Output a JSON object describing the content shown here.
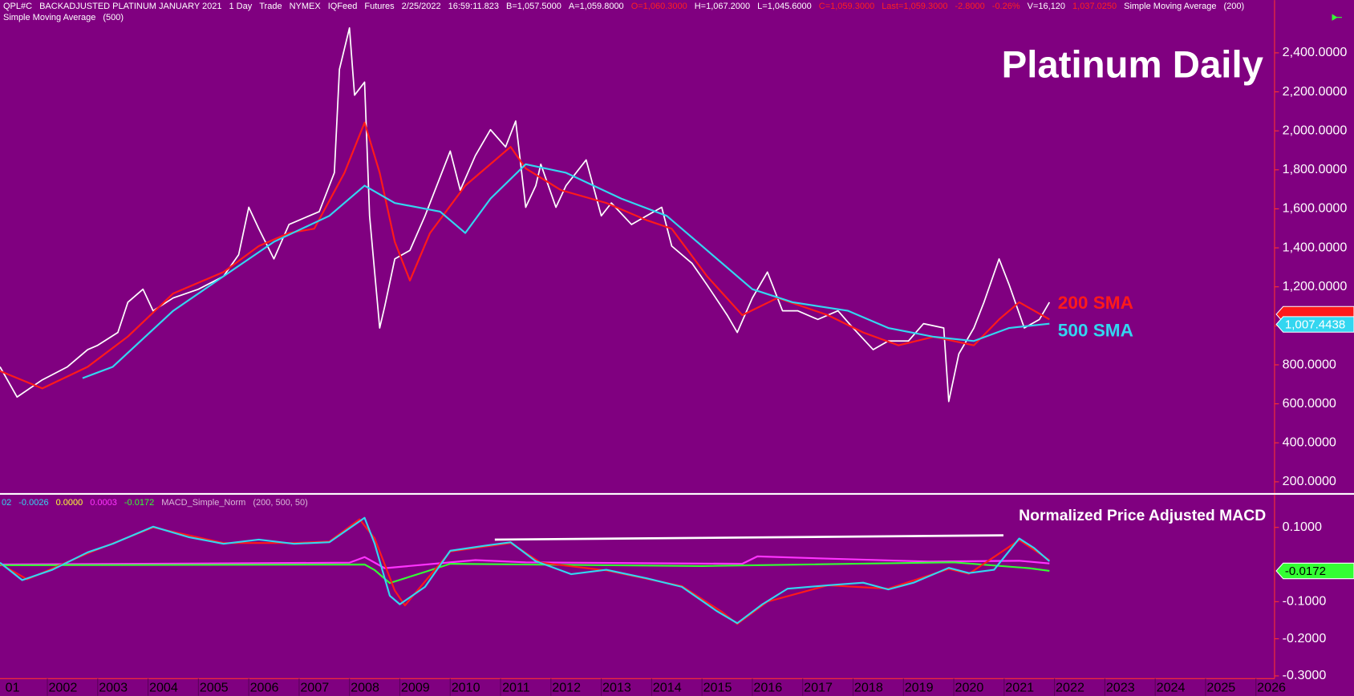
{
  "toolbar": {
    "row1": [
      {
        "text": "QPL#C",
        "color": "#ffffff"
      },
      {
        "text": "BACKADJUSTED PLATINUM JANUARY 2021",
        "color": "#ffffff"
      },
      {
        "text": "1 Day",
        "color": "#ffffff"
      },
      {
        "text": "Trade",
        "color": "#ffffff"
      },
      {
        "text": "NYMEX",
        "color": "#ffffff"
      },
      {
        "text": "IQFeed",
        "color": "#ffffff"
      },
      {
        "text": "Futures",
        "color": "#ffffff"
      },
      {
        "text": "2/25/2022",
        "color": "#ffffff"
      },
      {
        "text": "16:59:11.823",
        "color": "#ffffff"
      },
      {
        "text": "B=1,057.5000",
        "color": "#ffffff"
      },
      {
        "text": "A=1,059.8000",
        "color": "#ffffff"
      },
      {
        "text": "O=1,060.3000",
        "color": "#ff2020"
      },
      {
        "text": "H=1,067.2000",
        "color": "#ffffff"
      },
      {
        "text": "L=1,045.6000",
        "color": "#ffffff"
      },
      {
        "text": "C=1,059.3000",
        "color": "#ff2020"
      },
      {
        "text": "Last=1,059.3000",
        "color": "#ff2020"
      },
      {
        "text": "-2.8000",
        "color": "#ff2020"
      },
      {
        "text": "-0.26%",
        "color": "#ff2020"
      },
      {
        "text": "V=16,120",
        "color": "#ffffff"
      },
      {
        "text": "1,037.0250",
        "color": "#ff2020"
      },
      {
        "text": "Simple Moving Average",
        "color": "#ffffff"
      },
      {
        "text": "(200)",
        "color": "#ffffff"
      }
    ],
    "row2": [
      {
        "text": "Simple Moving Average",
        "color": "#ffffff"
      },
      {
        "text": "(500)",
        "color": "#ffffff"
      }
    ]
  },
  "chart_data": [
    {
      "type": "line",
      "title": "Platinum Daily",
      "xlim": [
        2001.06,
        2026.37
      ],
      "ylim": [
        147,
        2604
      ],
      "yticks": [
        {
          "value": 2400,
          "label": "2,400.0000"
        },
        {
          "value": 2200,
          "label": "2,200.0000"
        },
        {
          "value": 2000,
          "label": "2,000.0000"
        },
        {
          "value": 1800,
          "label": "1,800.0000"
        },
        {
          "value": 1600,
          "label": "1,600.0000"
        },
        {
          "value": 1400,
          "label": "1,400.0000"
        },
        {
          "value": 1200,
          "label": "1,200.0000"
        },
        {
          "value": 1000,
          "label": "1,000.0000"
        },
        {
          "value": 800,
          "label": "800.0000"
        },
        {
          "value": 600,
          "label": "600.0000"
        },
        {
          "value": 400,
          "label": "400.0000"
        },
        {
          "value": 200,
          "label": "200.0000"
        }
      ],
      "series": [
        {
          "color": "#ffffff",
          "x": [
            2001.06,
            2001.4,
            2001.9,
            2002.4,
            2002.8,
            2003.0,
            2003.4,
            2003.6,
            2003.9,
            2004.1,
            2004.5,
            2005.0,
            2005.5,
            2005.8,
            2006.0,
            2006.2,
            2006.5,
            2006.8,
            2007.2,
            2007.4,
            2007.7,
            2007.8,
            2008.0,
            2008.1,
            2008.3,
            2008.4,
            2008.6,
            2008.7,
            2008.9,
            2009.2,
            2009.5,
            2009.8,
            2010.0,
            2010.2,
            2010.5,
            2010.8,
            2011.1,
            2011.3,
            2011.5,
            2011.7,
            2011.8,
            2012.1,
            2012.3,
            2012.7,
            2013.0,
            2013.2,
            2013.6,
            2013.9,
            2014.2,
            2014.4,
            2014.8,
            2015.1,
            2015.5,
            2015.7,
            2016.0,
            2016.3,
            2016.6,
            2016.9,
            2017.3,
            2017.7,
            2018.0,
            2018.4,
            2018.7,
            2019.1,
            2019.4,
            2019.8,
            2019.9,
            2020.1,
            2020.4,
            2020.6,
            2020.9,
            2021.1,
            2021.4,
            2021.7,
            2021.9
          ],
          "values": [
            790,
            635,
            723,
            790,
            878,
            900,
            966,
            1121,
            1188,
            1077,
            1143,
            1188,
            1254,
            1365,
            1608,
            1498,
            1343,
            1520,
            1564,
            1586,
            1785,
            2316,
            2528,
            2183,
            2250,
            1564,
            989,
            1099,
            1343,
            1387,
            1564,
            1763,
            1896,
            1696,
            1873,
            2006,
            1918,
            2050,
            1608,
            1719,
            1829,
            1608,
            1719,
            1851,
            1564,
            1630,
            1520,
            1564,
            1608,
            1409,
            1321,
            1210,
            1055,
            966,
            1143,
            1276,
            1077,
            1077,
            1033,
            1077,
            989,
            878,
            922,
            922,
            1011,
            989,
            612,
            856,
            989,
            1121,
            1343,
            1210,
            989,
            1033,
            1121
          ]
        },
        {
          "name": "200 SMA",
          "color": "#ff1a1a",
          "x": [
            2001.06,
            2001.9,
            2002.8,
            2003.6,
            2004.5,
            2005.5,
            2006.2,
            2006.8,
            2007.3,
            2007.9,
            2008.3,
            2008.6,
            2008.9,
            2009.2,
            2009.6,
            2010.3,
            2011.2,
            2011.5,
            2012.2,
            2013.1,
            2013.9,
            2014.4,
            2015.1,
            2015.8,
            2016.5,
            2017.5,
            2018.2,
            2018.9,
            2019.6,
            2020.4,
            2020.9,
            2021.3,
            2021.9
          ],
          "values": [
            768,
            679,
            790,
            945,
            1166,
            1276,
            1409,
            1476,
            1498,
            1785,
            2042,
            1785,
            1431,
            1232,
            1476,
            1719,
            1918,
            1807,
            1696,
            1630,
            1542,
            1498,
            1254,
            1055,
            1143,
            1055,
            966,
            900,
            944,
            900,
            1033,
            1121,
            1033
          ]
        },
        {
          "name": "500 SMA",
          "color": "#33d6f0",
          "x": [
            2002.7,
            2003.3,
            2004.5,
            2005.5,
            2006.5,
            2007.6,
            2008.3,
            2008.9,
            2009.8,
            2010.3,
            2010.8,
            2011.5,
            2012.3,
            2013.4,
            2014.3,
            2015.1,
            2016.0,
            2016.8,
            2017.9,
            2018.7,
            2019.6,
            2020.4,
            2021.1,
            2021.9
          ],
          "values": [
            732,
            790,
            1077,
            1254,
            1431,
            1564,
            1719,
            1630,
            1586,
            1476,
            1652,
            1829,
            1785,
            1652,
            1564,
            1387,
            1188,
            1121,
            1077,
            989,
            944,
            922,
            989,
            1011
          ]
        }
      ],
      "axis_markers": [
        {
          "value": 1059.3,
          "color": "#ff1a1a"
        },
        {
          "value": 1007.4438,
          "label": "1,007.4438",
          "color": "#33d6f0"
        }
      ]
    },
    {
      "type": "line",
      "title": "Normalized Price Adjusted MACD",
      "readout": [
        {
          "text": "02",
          "color": "#33d6f0"
        },
        {
          "text": "-0.0026",
          "color": "#33d6f0"
        },
        {
          "text": "0.0000",
          "color": "#ffff33"
        },
        {
          "text": "0.0003",
          "color": "#ff33ff"
        },
        {
          "text": "-0.0172",
          "color": "#33ff33"
        },
        {
          "text": "MACD_Simple_Norm",
          "color": "#d8b8d8"
        },
        {
          "text": "(200, 500, 50)",
          "color": "#d8b8d8"
        }
      ],
      "xlim": [
        2001.06,
        2026.37
      ],
      "ylim": [
        -0.298,
        0.188
      ],
      "xticks": [
        {
          "value": 2001,
          "label": "01"
        },
        2002,
        2003,
        2004,
        2005,
        2006,
        2007,
        2008,
        2009,
        2010,
        2011,
        2012,
        2013,
        2014,
        2015,
        2016,
        2017,
        2018,
        2019,
        2020,
        2021,
        2022,
        2023,
        2024,
        2025,
        2026
      ],
      "yticks": [
        {
          "value": 0.1,
          "label": "0.1000"
        },
        {
          "value": -0.1,
          "label": "-0.1000"
        },
        {
          "value": -0.2,
          "label": "-0.2000"
        },
        {
          "value": -0.3,
          "label": "-0.3000"
        }
      ],
      "series": [
        {
          "color": "#ff33ff",
          "x": [
            2001.06,
            2008.0,
            2008.3,
            2008.7,
            2010.5,
            2011.5,
            2015.8,
            2016.1,
            2017.0,
            2019.5,
            2021.3,
            2021.9
          ],
          "values": [
            0.0,
            0.005,
            0.02,
            -0.01,
            0.012,
            0.006,
            0.002,
            0.022,
            0.018,
            0.008,
            0.01,
            0.003
          ]
        },
        {
          "color": "#33ff33",
          "x": [
            2001.06,
            2008.3,
            2008.5,
            2008.8,
            2009.5,
            2010.0,
            2015.0,
            2020.0,
            2021.5,
            2021.9
          ],
          "values": [
            -0.002,
            0.0,
            -0.015,
            -0.05,
            -0.02,
            0.002,
            -0.004,
            0.006,
            -0.01,
            -0.017
          ]
        },
        {
          "color": "#ff1a1a",
          "x": [
            2001.06,
            2001.6,
            2002.8,
            2004.1,
            2005.5,
            2006.9,
            2007.6,
            2008.2,
            2008.5,
            2008.9,
            2009.1,
            2010.0,
            2011.2,
            2011.8,
            2013.1,
            2014.6,
            2015.4,
            2015.7,
            2016.3,
            2017.5,
            2018.7,
            2019.9,
            2020.3,
            2021.3,
            2021.9
          ],
          "values": [
            0.002,
            -0.04,
            0.03,
            0.1,
            0.058,
            0.058,
            0.062,
            0.122,
            0.07,
            -0.07,
            -0.11,
            0.035,
            0.058,
            0.005,
            -0.016,
            -0.058,
            -0.128,
            -0.16,
            -0.1,
            -0.056,
            -0.065,
            -0.012,
            -0.025,
            0.066,
            0.012
          ]
        },
        {
          "color": "#33d6f0",
          "x": [
            2001.06,
            2001.5,
            2002.1,
            2002.8,
            2003.3,
            2004.1,
            2004.8,
            2005.5,
            2006.2,
            2006.9,
            2007.6,
            2008.3,
            2008.5,
            2008.8,
            2009.0,
            2009.5,
            2010.0,
            2010.7,
            2011.2,
            2011.7,
            2012.4,
            2013.1,
            2013.9,
            2014.6,
            2015.3,
            2015.7,
            2016.2,
            2016.7,
            2017.5,
            2018.2,
            2018.7,
            2019.2,
            2019.9,
            2020.3,
            2020.8,
            2021.3,
            2021.6,
            2021.9
          ],
          "values": [
            0.005,
            -0.042,
            -0.014,
            0.033,
            0.056,
            0.102,
            0.074,
            0.056,
            0.067,
            0.056,
            0.06,
            0.126,
            0.056,
            -0.084,
            -0.107,
            -0.06,
            0.037,
            0.051,
            0.06,
            0.009,
            -0.026,
            -0.014,
            -0.037,
            -0.06,
            -0.126,
            -0.158,
            -0.107,
            -0.065,
            -0.056,
            -0.049,
            -0.067,
            -0.049,
            -0.009,
            -0.023,
            -0.014,
            0.07,
            0.044,
            0.009
          ]
        }
      ],
      "axis_markers": [
        {
          "value": -0.0172,
          "label": "-0.0172",
          "color": "#33ff33"
        }
      ]
    }
  ]
}
